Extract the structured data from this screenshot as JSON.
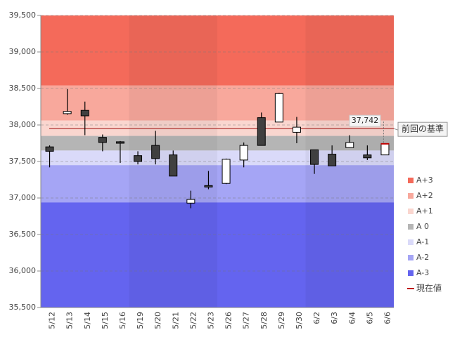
{
  "chart_data": {
    "type": "candlestick",
    "categories": [
      "5/12",
      "5/13",
      "5/14",
      "5/15",
      "5/16",
      "5/19",
      "5/20",
      "5/21",
      "5/22",
      "5/23",
      "5/26",
      "5/27",
      "5/28",
      "5/29",
      "5/30",
      "6/2",
      "6/3",
      "6/4",
      "6/5",
      "6/6"
    ],
    "open": [
      37700,
      38155,
      38200,
      37830,
      37770,
      37580,
      37720,
      37590,
      36930,
      37170,
      37200,
      37520,
      38100,
      38040,
      37900,
      37660,
      37600,
      37690,
      37590,
      37590
    ],
    "high": [
      37720,
      38490,
      38320,
      37870,
      37780,
      37640,
      37920,
      37650,
      37100,
      37370,
      37540,
      37760,
      38170,
      38440,
      38110,
      37660,
      37720,
      37860,
      37720,
      37742
    ],
    "low": [
      37420,
      38140,
      37860,
      37640,
      37480,
      37460,
      37460,
      37300,
      36860,
      37120,
      37190,
      37420,
      37720,
      38040,
      37750,
      37330,
      37440,
      37690,
      37520,
      37590
    ],
    "close": [
      37640,
      38185,
      38125,
      37760,
      37750,
      37500,
      37540,
      37300,
      36980,
      37150,
      37530,
      37720,
      37720,
      38430,
      37970,
      37460,
      37440,
      37760,
      37550,
      37742
    ],
    "up_color": "#ffffff",
    "down_color": "#404040",
    "ylim": [
      35500,
      39500
    ],
    "yticks": [
      {
        "value": 35500,
        "label": "35,500"
      },
      {
        "value": 36000,
        "label": "36,000"
      },
      {
        "value": 36500,
        "label": "36,500"
      },
      {
        "value": 37000,
        "label": "37,000"
      },
      {
        "value": 37500,
        "label": "37,500"
      },
      {
        "value": 38000,
        "label": "38,000"
      },
      {
        "value": 38500,
        "label": "38,500"
      },
      {
        "value": 39000,
        "label": "39,000"
      },
      {
        "value": 39500,
        "label": "39,500"
      }
    ],
    "grid": true,
    "zones": [
      {
        "name": "A+3",
        "color": "#f46a5a",
        "range": [
          38540,
          39500
        ]
      },
      {
        "name": "A+2",
        "color": "#f8a89c",
        "range": [
          38060,
          38540
        ]
      },
      {
        "name": "A+1",
        "color": "#fad6cf",
        "range": [
          37850,
          38060
        ]
      },
      {
        "name": "A 0",
        "color": "#b5b5b5",
        "range": [
          37650,
          37850
        ]
      },
      {
        "name": "A-1",
        "color": "#dadaf9",
        "range": [
          37450,
          37650
        ]
      },
      {
        "name": "A-2",
        "color": "#a5a5f5",
        "range": [
          36940,
          37450
        ]
      },
      {
        "name": "A-3",
        "color": "#6464ef",
        "range": [
          35500,
          36940
        ]
      }
    ],
    "reference_line": {
      "value": 37950,
      "label": "前回の基準",
      "color": "#a01010"
    },
    "current_value": {
      "name": "現在値",
      "value": 37742,
      "label": "37,742",
      "color": "#c00000"
    }
  }
}
